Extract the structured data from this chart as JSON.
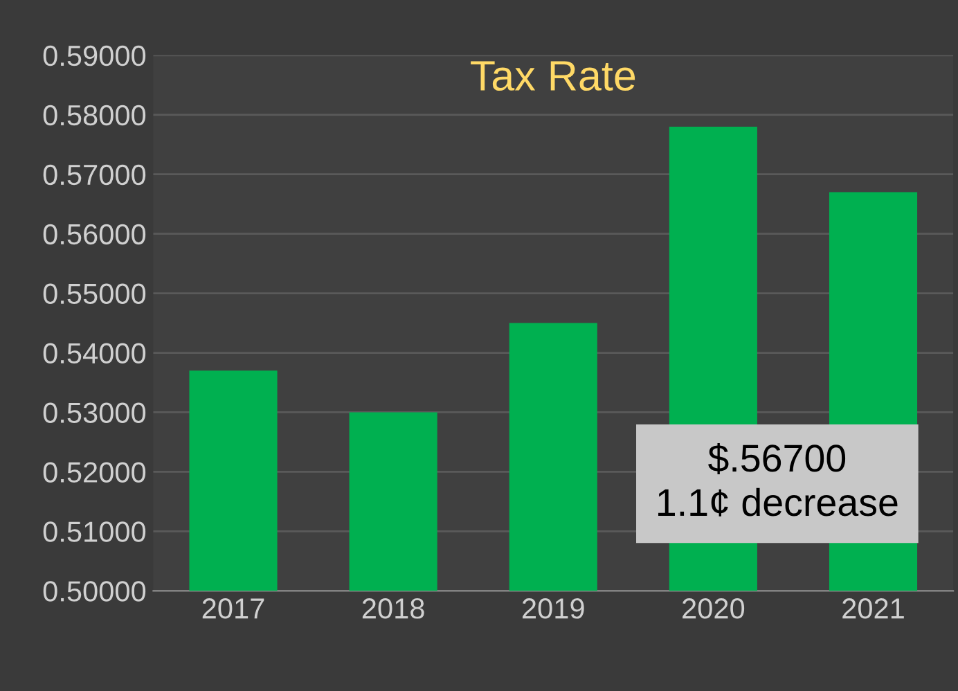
{
  "chart_data": {
    "type": "bar",
    "title": "Tax Rate",
    "categories": [
      "2017",
      "2018",
      "2019",
      "2020",
      "2021"
    ],
    "values": [
      0.537,
      0.53,
      0.545,
      0.578,
      0.567
    ],
    "color": "#00b050",
    "ylim": [
      0.5,
      0.59
    ],
    "yticks": [
      {
        "value": 0.5,
        "label": "0.50000"
      },
      {
        "value": 0.51,
        "label": "0.51000"
      },
      {
        "value": 0.52,
        "label": "0.52000"
      },
      {
        "value": 0.53,
        "label": "0.53000"
      },
      {
        "value": 0.54,
        "label": "0.54000"
      },
      {
        "value": 0.55,
        "label": "0.55000"
      },
      {
        "value": 0.56,
        "label": "0.56000"
      },
      {
        "value": 0.57,
        "label": "0.57000"
      },
      {
        "value": 0.58,
        "label": "0.58000"
      },
      {
        "value": 0.59,
        "label": "0.59000"
      }
    ],
    "grid": "y",
    "legend": false,
    "annotations": [
      "$.56700\n1.1¢ decrease"
    ]
  }
}
